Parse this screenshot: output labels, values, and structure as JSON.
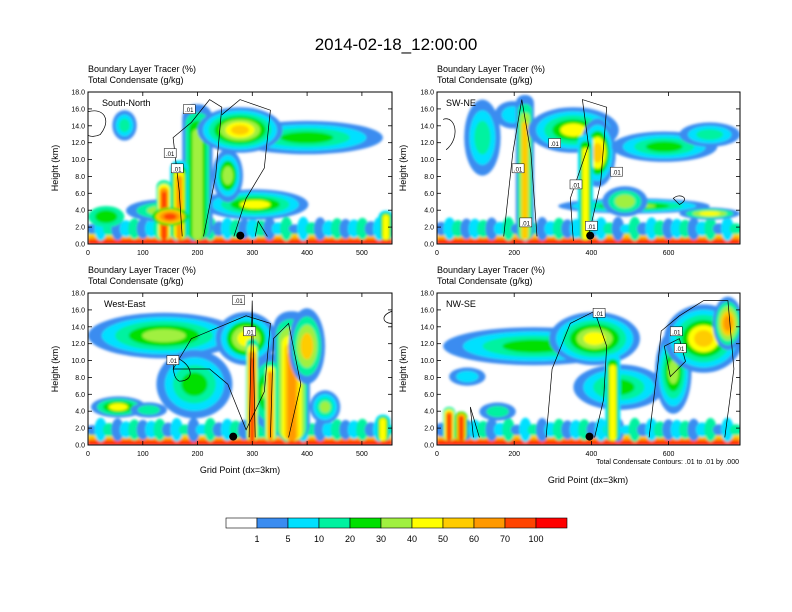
{
  "title": "2014-02-18_12:00:00",
  "panel_subtitle_1": "Boundary Layer Tracer   (%)",
  "panel_subtitle_2": "Total Condensate   (g/kg)",
  "ylabel": "Height (km)",
  "xlabel": "Grid Point (dx=3km)",
  "contour_note": "Total Condensate Contours: .01 to .01 by .000",
  "colors": {
    "levels": [
      "#ffffff",
      "#3a8cf0",
      "#00e0ff",
      "#00f2a0",
      "#00e000",
      "#a0f040",
      "#ffff00",
      "#ffcc00",
      "#ff9900",
      "#ff4400",
      "#ff0000"
    ],
    "contour": "#000000"
  },
  "chart_data": [
    {
      "type": "heatmap",
      "name": "South-North",
      "label": "South-North",
      "x_range": [
        0,
        555
      ],
      "x_ticks": [
        "0",
        "100",
        "200",
        "300",
        "400",
        "500"
      ],
      "ylim": [
        0,
        18
      ],
      "y_ticks": [
        "0.0",
        "2.0",
        "4.0",
        "6.0",
        "8.0",
        "10.0",
        "12.0",
        "14.0",
        "16.0",
        "18.0"
      ],
      "contour_labels": [
        {
          "text": ".01",
          "x": 185,
          "y": 15.9
        },
        {
          "text": ".01",
          "x": 150,
          "y": 10.7
        },
        {
          "text": ".01",
          "x": 163,
          "y": 8.9
        }
      ],
      "marker": {
        "x": 278,
        "y": 1.0
      }
    },
    {
      "type": "heatmap",
      "name": "SW-NE",
      "label": "SW-NE",
      "x_range": [
        0,
        785
      ],
      "x_ticks": [
        "0",
        "200",
        "400",
        "600"
      ],
      "ylim": [
        0,
        18
      ],
      "y_ticks": [
        "0.0",
        "2.0",
        "4.0",
        "6.0",
        "8.0",
        "10.0",
        "12.0",
        "14.0",
        "16.0",
        "18.0"
      ],
      "contour_labels": [
        {
          "text": ".01",
          "x": 305,
          "y": 11.9
        },
        {
          "text": ".01",
          "x": 210,
          "y": 8.9
        },
        {
          "text": ".01",
          "x": 360,
          "y": 7.0
        },
        {
          "text": ".01",
          "x": 465,
          "y": 8.5
        },
        {
          "text": ".01",
          "x": 230,
          "y": 2.5
        },
        {
          "text": ".01",
          "x": 400,
          "y": 2.1
        }
      ],
      "marker": {
        "x": 397,
        "y": 1.0
      }
    },
    {
      "type": "heatmap",
      "name": "West-East",
      "label": "West-East",
      "x_range": [
        0,
        555
      ],
      "x_ticks": [
        "0",
        "100",
        "200",
        "300",
        "400",
        "500"
      ],
      "ylim": [
        0,
        18
      ],
      "y_ticks": [
        "0.0",
        "2.0",
        "4.0",
        "6.0",
        "8.0",
        "10.0",
        "12.0",
        "14.0",
        "16.0",
        "18.0"
      ],
      "contour_labels": [
        {
          "text": ".01",
          "x": 275,
          "y": 17.1
        },
        {
          "text": ".01",
          "x": 295,
          "y": 13.4
        },
        {
          "text": ".01",
          "x": 155,
          "y": 10.0
        }
      ],
      "marker": {
        "x": 265,
        "y": 1.0
      }
    },
    {
      "type": "heatmap",
      "name": "NW-SE",
      "label": "NW-SE",
      "x_range": [
        0,
        785
      ],
      "x_ticks": [
        "0",
        "200",
        "400",
        "600"
      ],
      "ylim": [
        0,
        18
      ],
      "y_ticks": [
        "0.0",
        "2.0",
        "4.0",
        "6.0",
        "8.0",
        "10.0",
        "12.0",
        "14.0",
        "16.0",
        "18.0"
      ],
      "contour_labels": [
        {
          "text": ".01",
          "x": 420,
          "y": 15.6
        },
        {
          "text": ".01",
          "x": 620,
          "y": 13.4
        },
        {
          "text": ".01",
          "x": 630,
          "y": 11.4
        }
      ],
      "marker": {
        "x": 395,
        "y": 1.0
      }
    }
  ],
  "colorbar": {
    "labels": [
      "1",
      "5",
      "10",
      "20",
      "30",
      "40",
      "50",
      "60",
      "70",
      "100"
    ]
  }
}
